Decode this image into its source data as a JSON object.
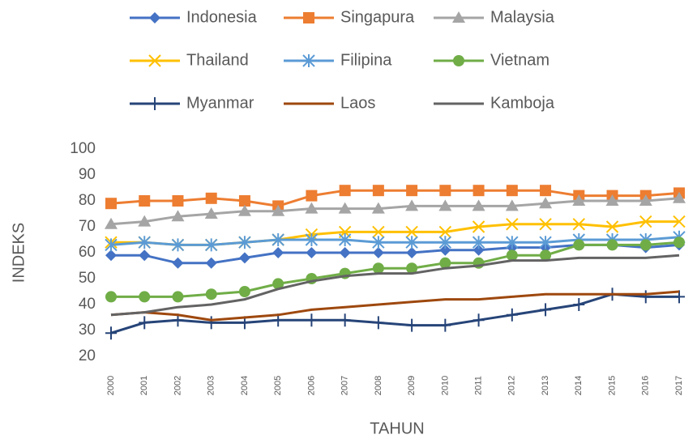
{
  "chart_data": {
    "type": "line",
    "x_label": "TAHUN",
    "y_label": "INDEKS",
    "categories": [
      "2000",
      "2001",
      "2002",
      "2003",
      "2004",
      "2005",
      "2006",
      "2007",
      "2008",
      "2009",
      "2010",
      "2011",
      "2012",
      "2013",
      "2014",
      "2015",
      "2016",
      "2017"
    ],
    "ylim": [
      20,
      100
    ],
    "yticks": [
      20,
      30,
      40,
      50,
      60,
      70,
      80,
      90,
      100
    ],
    "grid": false,
    "series": [
      {
        "name": "Indonesia",
        "color": "#4472c4",
        "marker": "diamond",
        "values": [
          59,
          59,
          56,
          56,
          58,
          60,
          60,
          60,
          60,
          60,
          61,
          61,
          62,
          62,
          63,
          63,
          62,
          63
        ]
      },
      {
        "name": "Singapura",
        "color": "#ed7d31",
        "marker": "square",
        "values": [
          79,
          80,
          80,
          81,
          80,
          78,
          82,
          84,
          84,
          84,
          84,
          84,
          84,
          84,
          82,
          82,
          82,
          83
        ]
      },
      {
        "name": "Malaysia",
        "color": "#a5a5a5",
        "marker": "triangle",
        "values": [
          71,
          72,
          74,
          75,
          76,
          76,
          77,
          77,
          77,
          78,
          78,
          78,
          78,
          79,
          80,
          80,
          80,
          81
        ]
      },
      {
        "name": "Thailand",
        "color": "#ffc000",
        "marker": "x",
        "values": [
          64,
          64,
          63,
          63,
          64,
          65,
          67,
          68,
          68,
          68,
          68,
          70,
          71,
          71,
          71,
          70,
          72,
          72
        ]
      },
      {
        "name": "Filipina",
        "color": "#5b9bd5",
        "marker": "asterisk",
        "values": [
          63,
          64,
          63,
          63,
          64,
          65,
          65,
          65,
          64,
          64,
          64,
          64,
          64,
          64,
          65,
          65,
          65,
          66
        ]
      },
      {
        "name": "Vietnam",
        "color": "#70ad47",
        "marker": "circle",
        "values": [
          43,
          43,
          43,
          44,
          45,
          48,
          50,
          52,
          54,
          54,
          56,
          56,
          59,
          59,
          63,
          63,
          63,
          64
        ]
      },
      {
        "name": "Myanmar",
        "color": "#264478",
        "marker": "plus",
        "values": [
          29,
          33,
          34,
          33,
          33,
          34,
          34,
          34,
          33,
          32,
          32,
          34,
          36,
          38,
          40,
          44,
          43,
          43
        ]
      },
      {
        "name": "Laos",
        "color": "#9e480e",
        "marker": "none",
        "values": [
          36,
          37,
          36,
          34,
          35,
          36,
          38,
          39,
          40,
          41,
          42,
          42,
          43,
          44,
          44,
          44,
          44,
          45
        ]
      },
      {
        "name": "Kamboja",
        "color": "#636363",
        "marker": "none",
        "values": [
          36,
          37,
          39,
          40,
          42,
          46,
          49,
          51,
          52,
          52,
          54,
          55,
          57,
          57,
          58,
          58,
          58,
          59
        ]
      }
    ]
  }
}
